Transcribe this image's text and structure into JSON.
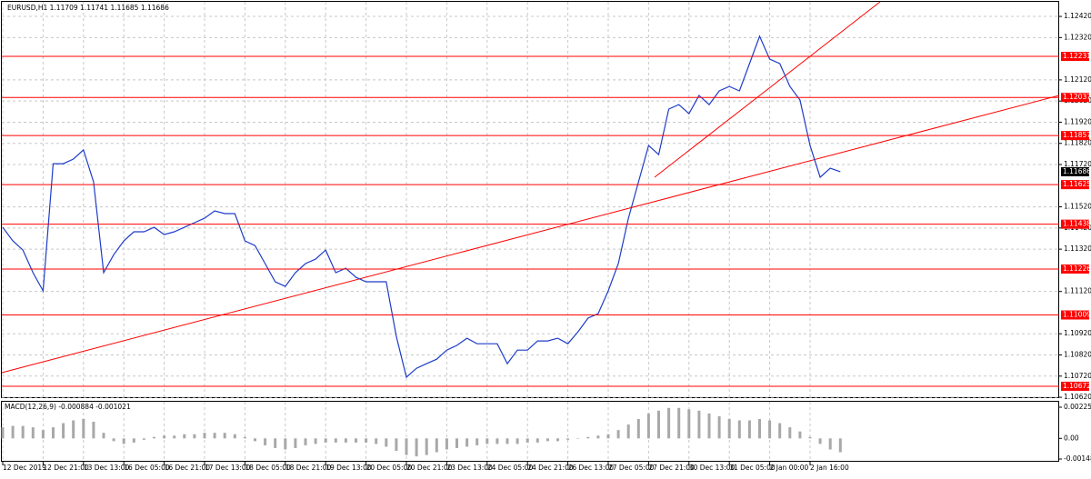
{
  "chart_data": [
    {
      "type": "line",
      "title": "EURUSD,H1  1.11709 1.11741 1.11685 1.11686",
      "categories": [
        "12 Dec 2019",
        null,
        null,
        null,
        "12 Dec 21:00",
        null,
        null,
        null,
        "13 Dec 13:00",
        null,
        null,
        null,
        "16 Dec 05:00",
        null,
        null,
        null,
        "16 Dec 21:00",
        null,
        null,
        null,
        "17 Dec 13:00",
        null,
        null,
        null,
        "18 Dec 05:00",
        null,
        null,
        null,
        "18 Dec 21:00",
        null,
        null,
        null,
        "19 Dec 13:00",
        null,
        null,
        null,
        "20 Dec 05:00",
        null,
        null,
        null,
        "20 Dec 21:00",
        null,
        null,
        null,
        "23 Dec 13:00",
        null,
        null,
        null,
        "24 Dec 05:00",
        null,
        null,
        null,
        "24 Dec 21:00",
        null,
        null,
        null,
        "26 Dec 13:00",
        null,
        null,
        null,
        "27 Dec 05:00",
        null,
        null,
        null,
        "27 Dec 21:00",
        null,
        null,
        null,
        "30 Dec 13:00",
        null,
        null,
        null,
        "31 Dec 05:00",
        null,
        null,
        null,
        "2 Jan 00:00",
        null,
        null,
        null,
        "2 Jan 16:00",
        null,
        null,
        null
      ],
      "values": [
        1.11423,
        1.11359,
        1.11316,
        1.11209,
        1.11123,
        1.11724,
        1.11724,
        1.11746,
        1.11789,
        1.11638,
        1.11209,
        1.11294,
        1.11359,
        1.11402,
        1.11402,
        1.11423,
        1.11389,
        1.11402,
        1.11423,
        1.11445,
        1.11466,
        1.11501,
        1.11488,
        1.11488,
        1.11359,
        1.11337,
        1.11252,
        1.11166,
        1.11144,
        1.11209,
        1.11252,
        1.11273,
        1.11316,
        1.11209,
        1.1123,
        1.11187,
        1.11166,
        1.11166,
        1.11166,
        1.10908,
        1.10715,
        1.10757,
        1.10779,
        1.108,
        1.10843,
        1.10865,
        1.10899,
        1.10873,
        1.10873,
        1.10873,
        1.10779,
        1.10843,
        1.10843,
        1.10886,
        1.10886,
        1.10899,
        1.10873,
        1.10929,
        1.10994,
        1.11015,
        1.11123,
        1.11252,
        1.11466,
        1.11638,
        1.1181,
        1.11767,
        1.11982,
        1.12003,
        1.1196,
        1.12046,
        1.12003,
        1.12068,
        1.12089,
        1.12068,
        1.12197,
        1.12326,
        1.12218,
        1.12197,
        1.12089,
        1.12025,
        1.1181,
        1.1166,
        1.11703,
        1.11686
      ],
      "color": "#1e3cc8",
      "ylim": [
        1.10616,
        1.12489
      ],
      "yticks": [
        {
          "value": 1.1242,
          "label": "1.12420"
        },
        {
          "value": 1.1232,
          "label": "1.12320"
        },
        {
          "value": 1.1212,
          "label": "1.12120"
        },
        {
          "value": 1.1202,
          "label": "1.12020"
        },
        {
          "value": 1.1192,
          "label": "1.11920"
        },
        {
          "value": 1.1182,
          "label": "1.11820"
        },
        {
          "value": 1.1172,
          "label": "1.11720"
        },
        {
          "value": 1.1152,
          "label": "1.11520"
        },
        {
          "value": 1.1142,
          "label": "1.11420"
        },
        {
          "value": 1.1132,
          "label": "1.11320"
        },
        {
          "value": 1.1112,
          "label": "1.11120"
        },
        {
          "value": 1.1092,
          "label": "1.10920"
        },
        {
          "value": 1.1082,
          "label": "1.10820"
        },
        {
          "value": 1.1072,
          "label": "1.10720"
        },
        {
          "value": 1.1062,
          "label": "1.10620"
        }
      ],
      "levels": [
        1.12231,
        1.12037,
        1.11857,
        1.11625,
        1.11438,
        1.11226,
        1.11009,
        1.10672
      ],
      "level_color": "#ff0000",
      "last_price": 1.11686,
      "grid": true
    },
    {
      "type": "bar",
      "title": "MACD(12,26,9) -0.000884 -0.001021",
      "values": [
        0.0008,
        0.0009,
        0.0009,
        0.0008,
        0.0006,
        0.0008,
        0.0011,
        0.0013,
        0.0014,
        0.0012,
        0.0004,
        -0.0002,
        -0.0004,
        -0.0003,
        -0.0001,
        0.0001,
        0.0002,
        0.0002,
        0.0003,
        0.0003,
        0.0004,
        0.0004,
        0.0004,
        0.0003,
        0.0001,
        -0.0002,
        -0.0005,
        -0.0007,
        -0.0008,
        -0.0007,
        -0.0005,
        -0.0004,
        -0.0003,
        -0.0003,
        -0.0003,
        -0.0003,
        -0.0003,
        -0.0004,
        -0.0006,
        -0.0009,
        -0.0012,
        -0.0013,
        -0.0012,
        -0.001,
        -0.0008,
        -0.0007,
        -0.0006,
        -0.0005,
        -0.0004,
        -0.0004,
        -0.0004,
        -0.0004,
        -0.0003,
        -0.0003,
        -0.0002,
        -0.0002,
        -0.0001,
        0,
        0.0001,
        0.0002,
        0.0003,
        0.0006,
        0.001,
        0.0014,
        0.0018,
        0.002,
        0.0022,
        0.0022,
        0.0021,
        0.002,
        0.0018,
        0.0016,
        0.0014,
        0.0013,
        0.0013,
        0.0014,
        0.0013,
        0.0011,
        0.0008,
        0.0005,
        0.0001,
        -0.0004,
        -0.0008,
        -0.001
      ],
      "color": "#a8a8a8",
      "ylim": [
        -0.001686,
        0.002646
      ],
      "yticks": [
        0.002252,
        {
          "value": 0,
          "label": "0.00"
        },
        -0.001489
      ]
    }
  ]
}
